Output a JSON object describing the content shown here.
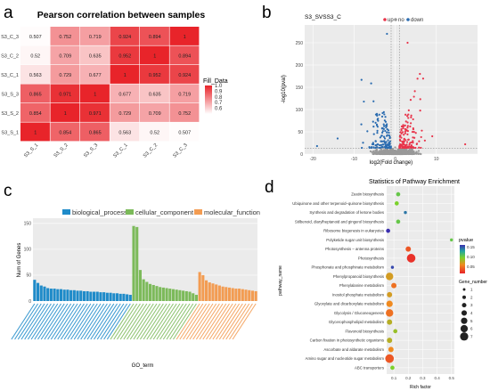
{
  "chart_data": [
    {
      "panel": "a",
      "type": "heatmap",
      "title": "Pearson correlation between samples",
      "rows": [
        "S3_C_3",
        "S3_C_2",
        "S3_C_1",
        "S3_S_3",
        "S3_S_2",
        "S3_S_1"
      ],
      "cols": [
        "S3_S_1",
        "S3_S_2",
        "S3_S_3",
        "S3_C_1",
        "S3_C_2",
        "S3_C_3"
      ],
      "values": [
        [
          0.507,
          0.752,
          0.719,
          0.924,
          0.894,
          1
        ],
        [
          0.52,
          0.709,
          0.635,
          0.952,
          1,
          0.894
        ],
        [
          0.563,
          0.729,
          0.677,
          1,
          0.952,
          0.924
        ],
        [
          0.865,
          0.971,
          1,
          0.677,
          0.635,
          0.719
        ],
        [
          0.854,
          1,
          0.971,
          0.729,
          0.709,
          0.752
        ],
        [
          1,
          0.854,
          0.865,
          0.563,
          0.52,
          0.507
        ]
      ],
      "cell_labels": [
        [
          "0.507",
          "0.752",
          "0.719",
          "0.924",
          "0.894",
          "1"
        ],
        [
          "0.52",
          "0.709",
          "0.635",
          "0.952",
          "1",
          "0.894"
        ],
        [
          "0.563",
          "0.729",
          "0.677",
          "1",
          "0.952",
          "0.924"
        ],
        [
          "0.865",
          "0.971",
          "1",
          "0.677",
          "0.635",
          "0.719"
        ],
        [
          "0.854",
          "1",
          "0.971",
          "0.729",
          "0.709",
          "0.752"
        ],
        [
          "1",
          "0.854",
          "0.865",
          "0.563",
          "0.52",
          "0.507"
        ]
      ],
      "legend_title": "Fill_Data",
      "legend_ticks": [
        "1.0",
        "0.9",
        "0.8",
        "0.7",
        "0.6"
      ],
      "legend_tick_values": [
        1.0,
        0.9,
        0.8,
        0.7,
        0.6
      ],
      "color_low": "#ffffff",
      "color_high": "#e8242a",
      "value_range": [
        0.5,
        1.0
      ]
    },
    {
      "panel": "b",
      "type": "scatter",
      "title": "S3_SVSS3_C",
      "xlabel": "log2(Fold change)",
      "ylabel": "-log10(pval)",
      "xticks": [
        -20,
        -10,
        0,
        10
      ],
      "yticks": [
        0,
        50,
        100,
        150,
        200,
        250
      ],
      "xlim": [
        -22,
        20
      ],
      "ylim": [
        0,
        290
      ],
      "legend": [
        {
          "name": "up",
          "color": "#e8344a"
        },
        {
          "name": "no",
          "color": "#999999"
        },
        {
          "name": "down",
          "color": "#2b6cb0"
        }
      ],
      "threshold_x": [
        -1,
        1
      ],
      "threshold_y": 1.3
    },
    {
      "panel": "c",
      "type": "bar",
      "xlabel": "GO_term",
      "ylabel": "Num of Genes",
      "yticks": [
        0,
        50,
        100,
        150
      ],
      "ylim": [
        0,
        160
      ],
      "series": [
        {
          "name": "biological_process",
          "color": "#1f8bc9",
          "values": [
            41,
            35,
            30,
            28,
            25,
            24,
            24,
            23,
            23,
            22,
            22,
            21,
            21,
            20,
            20,
            19,
            19,
            18,
            18,
            18,
            17,
            17,
            16,
            16,
            15,
            15,
            14,
            14,
            13,
            12
          ]
        },
        {
          "name": "cellular_component",
          "color": "#7cba5a",
          "values": [
            145,
            143,
            60,
            42,
            37,
            33,
            31,
            29,
            27,
            26,
            25,
            24,
            23,
            22,
            21,
            20,
            19,
            18,
            15,
            12
          ]
        },
        {
          "name": "molecular_function",
          "color": "#f39c52",
          "values": [
            56,
            50,
            40,
            36,
            34,
            32,
            30,
            28,
            27,
            26,
            25,
            24,
            24,
            23,
            22,
            21,
            20,
            19
          ]
        }
      ]
    },
    {
      "panel": "d",
      "type": "scatter",
      "title": "Statistics of Pathway Enrichment",
      "xlabel": "Rich factor",
      "ylabel": "pathway_name",
      "xticks": [
        0.1,
        0.2,
        0.3,
        0.4,
        0.5
      ],
      "xlim": [
        0.05,
        0.52
      ],
      "pvalue_legend_title": "pvalue",
      "pvalue_ticks": [
        "0.15",
        "0.10",
        "0.05"
      ],
      "gene_legend_title": "Gene_number",
      "gene_ticks": [
        1,
        2,
        3,
        4,
        5,
        6,
        7
      ],
      "pathways": [
        {
          "name": "Zeatin biosynthesis",
          "rich": 0.13,
          "genes": 2,
          "pvalue": 0.09
        },
        {
          "name": "Ubiquinone and other terpenoid–quinone biosynthesis",
          "rich": 0.12,
          "genes": 2,
          "pvalue": 0.08
        },
        {
          "name": "Synthesis and degradation of ketone bodies",
          "rich": 0.18,
          "genes": 1,
          "pvalue": 0.14
        },
        {
          "name": "Stilbenoid, diarylheptanoid and gingerol biosynthesis",
          "rich": 0.13,
          "genes": 2,
          "pvalue": 0.09
        },
        {
          "name": "Ribosome biogenesis in eukaryotes",
          "rich": 0.06,
          "genes": 2,
          "pvalue": 0.17
        },
        {
          "name": "Polyketide sugar unit biosynthesis",
          "rich": 0.5,
          "genes": 1,
          "pvalue": 0.09
        },
        {
          "name": "Photosynthesis – antenna proteins",
          "rich": 0.2,
          "genes": 3,
          "pvalue": 0.02
        },
        {
          "name": "Photosynthesis",
          "rich": 0.22,
          "genes": 6,
          "pvalue": 0.005
        },
        {
          "name": "Phosphonate and phosphinate metabolism",
          "rich": 0.09,
          "genes": 1,
          "pvalue": 0.16
        },
        {
          "name": "Phenylpropanoid biosynthesis",
          "rich": 0.07,
          "genes": 5,
          "pvalue": 0.05
        },
        {
          "name": "Phenylalanine metabolism",
          "rich": 0.1,
          "genes": 3,
          "pvalue": 0.03
        },
        {
          "name": "Inositol phosphate metabolism",
          "rich": 0.07,
          "genes": 3,
          "pvalue": 0.05
        },
        {
          "name": "Glyoxylate and dicarboxylate metabolism",
          "rich": 0.07,
          "genes": 4,
          "pvalue": 0.04
        },
        {
          "name": "Glycolysis / Gluconeogenesis",
          "rich": 0.07,
          "genes": 5,
          "pvalue": 0.03
        },
        {
          "name": "Glycerophospholipid metabolism",
          "rich": 0.07,
          "genes": 3,
          "pvalue": 0.06
        },
        {
          "name": "Flavonoid biosynthesis",
          "rich": 0.11,
          "genes": 2,
          "pvalue": 0.07
        },
        {
          "name": "Carbon fixation in photosynthetic organisms",
          "rich": 0.07,
          "genes": 3,
          "pvalue": 0.06
        },
        {
          "name": "Ascorbate and aldarate metabolism",
          "rich": 0.08,
          "genes": 3,
          "pvalue": 0.04
        },
        {
          "name": "Amino sugar and nucleotide sugar metabolism",
          "rich": 0.07,
          "genes": 6,
          "pvalue": 0.02
        },
        {
          "name": "ABC transporters",
          "rich": 0.09,
          "genes": 2,
          "pvalue": 0.08
        }
      ]
    }
  ],
  "panels": {
    "a": "a",
    "b": "b",
    "c": "c",
    "d": "d"
  }
}
